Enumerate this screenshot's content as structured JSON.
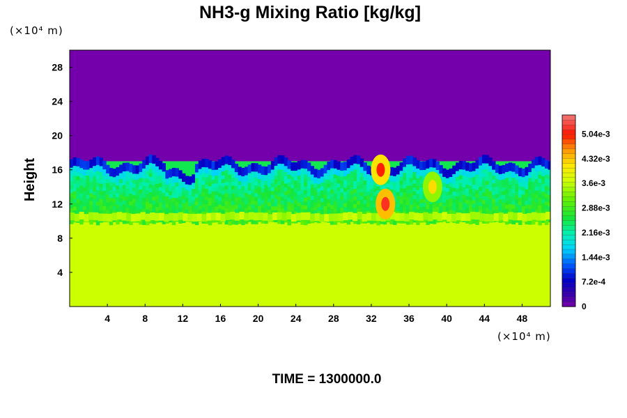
{
  "chart_data": {
    "type": "heatmap",
    "title": "NH3-g Mixing Ratio [kg/kg]",
    "ylabel": "Height",
    "xlabel": "",
    "x_unit": "(×10⁴ m)",
    "y_unit": "(×10⁴ m)",
    "footer": "TIME = 1300000.0",
    "x_ticks": [
      "4",
      "8",
      "12",
      "16",
      "20",
      "24",
      "28",
      "32",
      "36",
      "40",
      "44",
      "48"
    ],
    "y_ticks": [
      "4",
      "8",
      "12",
      "16",
      "20",
      "24",
      "28"
    ],
    "xlim": [
      0,
      51
    ],
    "ylim": [
      0,
      30
    ],
    "colorbar": {
      "range": [
        0,
        0.0056
      ],
      "labels": [
        "0",
        "7.2e-4",
        "1.44e-3",
        "2.16e-3",
        "2.88e-3",
        "3.6e-3",
        "4.32e-3",
        "5.04e-3"
      ],
      "values": [
        0,
        0.00072,
        0.00144,
        0.00216,
        0.00288,
        0.0036,
        0.00432,
        0.00504
      ]
    },
    "layers": [
      {
        "name": "upper",
        "y_range": [
          17,
          30
        ],
        "value": 3e-05
      },
      {
        "name": "mixing",
        "y_range": [
          10,
          17
        ],
        "value": 0.0025
      },
      {
        "name": "lower",
        "y_range": [
          0,
          10
        ],
        "value": 0.0037
      }
    ],
    "hotspots": [
      {
        "x": 33.5,
        "y": 12,
        "value": 0.0052
      },
      {
        "x": 33,
        "y": 16,
        "value": 0.005
      },
      {
        "x": 38.5,
        "y": 14,
        "value": 0.0042
      }
    ]
  },
  "colors": {
    "palette_low": "#7700aa",
    "palette_high": "#ee6666",
    "lower_layer": "#ccff00"
  }
}
